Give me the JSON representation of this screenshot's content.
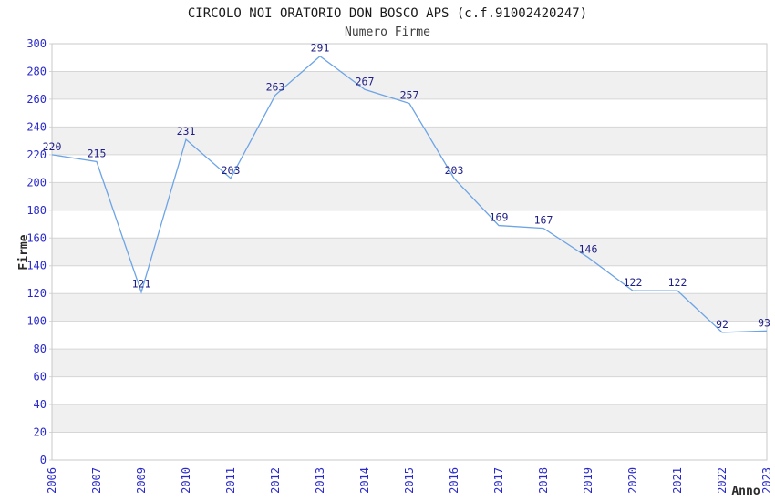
{
  "chart_data": {
    "type": "line",
    "title": "CIRCOLO NOI ORATORIO DON BOSCO APS (c.f.91002420247)",
    "subtitle": "Numero Firme",
    "xlabel": "Anno",
    "ylabel": "Firme",
    "categories": [
      "2006",
      "2007",
      "2009",
      "2010",
      "2011",
      "2012",
      "2013",
      "2014",
      "2015",
      "2016",
      "2017",
      "2018",
      "2019",
      "2020",
      "2021",
      "2022",
      "2023"
    ],
    "values": [
      220,
      215,
      121,
      231,
      203,
      263,
      291,
      267,
      257,
      203,
      169,
      167,
      146,
      122,
      122,
      92,
      93
    ],
    "ylim": [
      0,
      300
    ],
    "ytick_step": 20,
    "grid": "horizontal-bands-alternating",
    "legend": "none",
    "point_labels_visible": true,
    "x_tick_rotation_degrees": 90,
    "colors": {
      "line": "#6da4e6",
      "data_label": "#1e1e87",
      "tick_label": "#2a2acc",
      "band_gray": "#f0f0f0",
      "band_white": "#ffffff",
      "grid": "#d6d6d6",
      "border": "#c9c9c9",
      "title": "#1a1a1a",
      "subtitle": "#3d3d3d",
      "axis_title": "#2b2b2b"
    }
  }
}
